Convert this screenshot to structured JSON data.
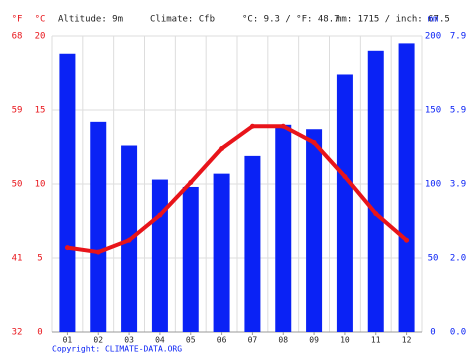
{
  "chart_data": {
    "type": "climate",
    "header": {
      "f_unit": "°F",
      "c_unit": "°C",
      "altitude": "Altitude: 9m",
      "climate": "Climate: Cfb",
      "temp_avg": "°C: 9.3 / °F: 48.7",
      "precip_total": "mm: 1715 / inch: 67.5",
      "mm_unit": "mm"
    },
    "copyright": "Copyright: CLIMATE-DATA.ORG",
    "categories": [
      "01",
      "02",
      "03",
      "04",
      "05",
      "06",
      "07",
      "08",
      "09",
      "10",
      "11",
      "12"
    ],
    "ylim": [
      0,
      20
    ],
    "yticks": [
      0,
      5,
      10,
      15,
      20
    ],
    "yticks_f": [
      {
        "value": 0,
        "label": "32"
      },
      {
        "value": 5,
        "label": "41"
      },
      {
        "value": 10,
        "label": "50"
      },
      {
        "value": 15,
        "label": "59"
      },
      {
        "value": 20,
        "label": "68"
      }
    ],
    "y2lim": [
      0,
      200
    ],
    "y2ticks": [
      0,
      50,
      100,
      150,
      200
    ],
    "y2ticks_inch": [
      {
        "value": 0,
        "label": "0.0"
      },
      {
        "value": 50,
        "label": "2.0"
      },
      {
        "value": 100,
        "label": "3.9"
      },
      {
        "value": 150,
        "label": "5.9"
      },
      {
        "value": 200,
        "label": "7.9"
      }
    ],
    "grid": true,
    "series": [
      {
        "kind": "bar",
        "axis": "y2",
        "color": "#0a22f5",
        "values": [
          188,
          142,
          126,
          103,
          98,
          107,
          119,
          140,
          137,
          174,
          190,
          195
        ]
      },
      {
        "kind": "line",
        "axis": "y",
        "color": "#e8141a",
        "values": [
          5.7,
          5.4,
          6.2,
          7.9,
          10.1,
          12.4,
          13.9,
          13.9,
          12.8,
          10.5,
          8.0,
          6.2
        ]
      }
    ]
  }
}
